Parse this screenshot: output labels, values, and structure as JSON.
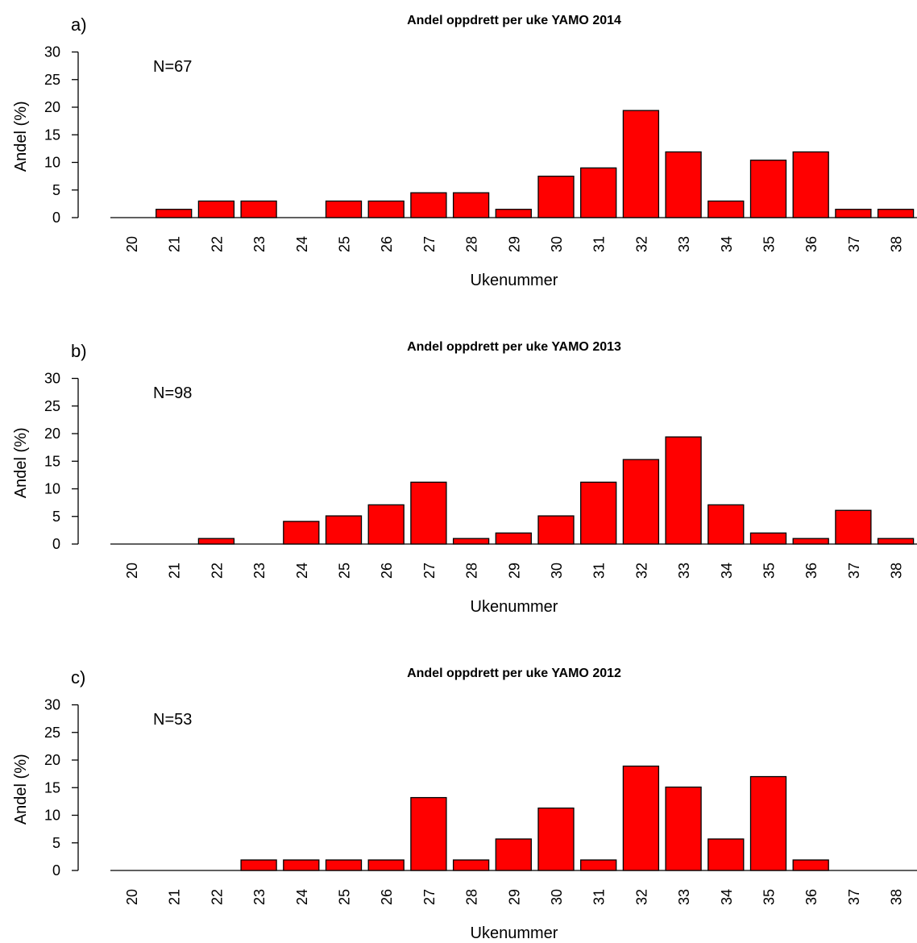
{
  "colors": {
    "bar_fill": "#ff0000",
    "bar_stroke": "#000000",
    "background": "#ffffff"
  },
  "chart_data": [
    {
      "type": "bar",
      "panel_label": "a)",
      "title": "Andel oppdrett per uke YAMO 2014",
      "annotation": "N=67",
      "xlabel": "Ukenummer",
      "ylabel": "Andel (%)",
      "ylim": [
        0,
        30
      ],
      "yticks": [
        0,
        5,
        10,
        15,
        20,
        25,
        30
      ],
      "grid": false,
      "categories": [
        "20",
        "21",
        "22",
        "23",
        "24",
        "25",
        "26",
        "27",
        "28",
        "29",
        "30",
        "31",
        "32",
        "33",
        "34",
        "35",
        "36",
        "37",
        "38"
      ],
      "values": [
        0,
        1.5,
        3.0,
        3.0,
        0,
        3.0,
        3.0,
        4.5,
        4.5,
        1.5,
        7.5,
        9.0,
        19.4,
        11.9,
        3.0,
        10.4,
        11.9,
        1.5,
        1.5
      ]
    },
    {
      "type": "bar",
      "panel_label": "b)",
      "title": "Andel oppdrett per uke YAMO 2013",
      "annotation": "N=98",
      "xlabel": "Ukenummer",
      "ylabel": "Andel (%)",
      "ylim": [
        0,
        30
      ],
      "yticks": [
        0,
        5,
        10,
        15,
        20,
        25,
        30
      ],
      "grid": false,
      "categories": [
        "20",
        "21",
        "22",
        "23",
        "24",
        "25",
        "26",
        "27",
        "28",
        "29",
        "30",
        "31",
        "32",
        "33",
        "34",
        "35",
        "36",
        "37",
        "38"
      ],
      "values": [
        0,
        0,
        1.0,
        0,
        4.1,
        5.1,
        7.1,
        11.2,
        1.0,
        2.0,
        5.1,
        11.2,
        15.3,
        19.4,
        7.1,
        2.0,
        1.0,
        6.1,
        1.0
      ]
    },
    {
      "type": "bar",
      "panel_label": "c)",
      "title": "Andel oppdrett per uke YAMO 2012",
      "annotation": "N=53",
      "xlabel": "Ukenummer",
      "ylabel": "Andel (%)",
      "ylim": [
        0,
        30
      ],
      "yticks": [
        0,
        5,
        10,
        15,
        20,
        25,
        30
      ],
      "grid": false,
      "categories": [
        "20",
        "21",
        "22",
        "23",
        "24",
        "25",
        "26",
        "27",
        "28",
        "29",
        "30",
        "31",
        "32",
        "33",
        "34",
        "35",
        "36",
        "37",
        "38"
      ],
      "values": [
        0,
        0,
        0,
        1.9,
        1.9,
        1.9,
        1.9,
        13.2,
        1.9,
        5.7,
        11.3,
        1.9,
        18.9,
        15.1,
        5.7,
        17.0,
        1.9,
        0,
        0
      ]
    }
  ]
}
